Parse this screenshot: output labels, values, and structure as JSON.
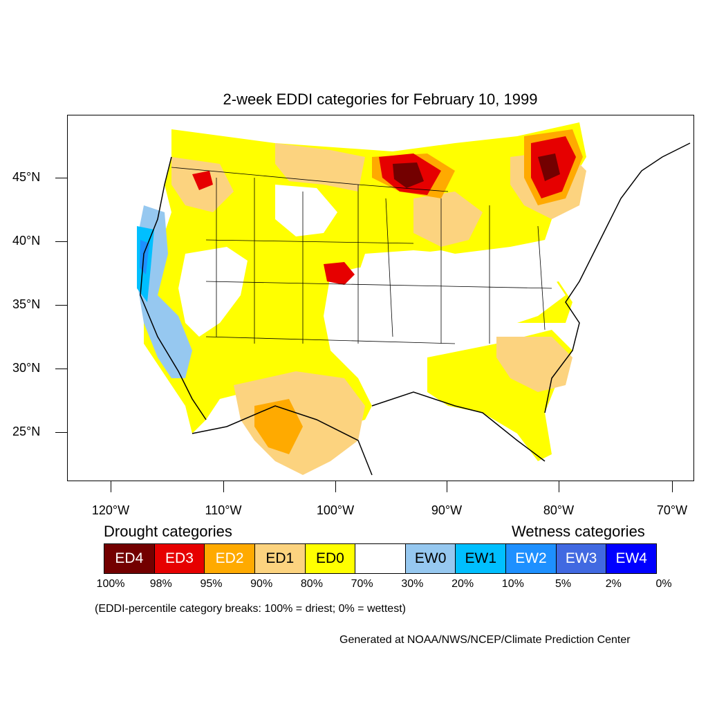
{
  "title": "2-week EDDI categories for February 10, 1999",
  "lat_labels": [
    "45°N",
    "40°N",
    "35°N",
    "30°N",
    "25°N"
  ],
  "lon_labels": [
    "120°W",
    "110°W",
    "100°W",
    "90°W",
    "80°W",
    "70°W"
  ],
  "legend": {
    "drought_heading": "Drought categories",
    "wetness_heading": "Wetness categories",
    "categories": [
      {
        "label": "ED4",
        "color": "#730000",
        "text_color": "#ffffff"
      },
      {
        "label": "ED3",
        "color": "#e60000",
        "text_color": "#ffffff"
      },
      {
        "label": "ED2",
        "color": "#ffaa00",
        "text_color": "#ffffff"
      },
      {
        "label": "ED1",
        "color": "#fcd37f",
        "text_color": "#000000"
      },
      {
        "label": "ED0",
        "color": "#ffff00",
        "text_color": "#000000"
      },
      {
        "label": "",
        "color": "#ffffff",
        "text_color": "#000000"
      },
      {
        "label": "EW0",
        "color": "#96c8f0",
        "text_color": "#000000"
      },
      {
        "label": "EW1",
        "color": "#00bfff",
        "text_color": "#000000"
      },
      {
        "label": "EW2",
        "color": "#1e90ff",
        "text_color": "#ffffff"
      },
      {
        "label": "EW3",
        "color": "#4169e1",
        "text_color": "#ffffff"
      },
      {
        "label": "EW4",
        "color": "#0000ff",
        "text_color": "#ffffff"
      }
    ],
    "breaks": [
      "100%",
      "98%",
      "95%",
      "90%",
      "80%",
      "70%",
      "30%",
      "20%",
      "10%",
      "5%",
      "2%",
      "0%"
    ]
  },
  "note": "(EDDI-percentile category breaks: 100% = driest; 0% = wettest)",
  "credit": "Generated at NOAA/NWS/NCEP/Climate Prediction Center"
}
